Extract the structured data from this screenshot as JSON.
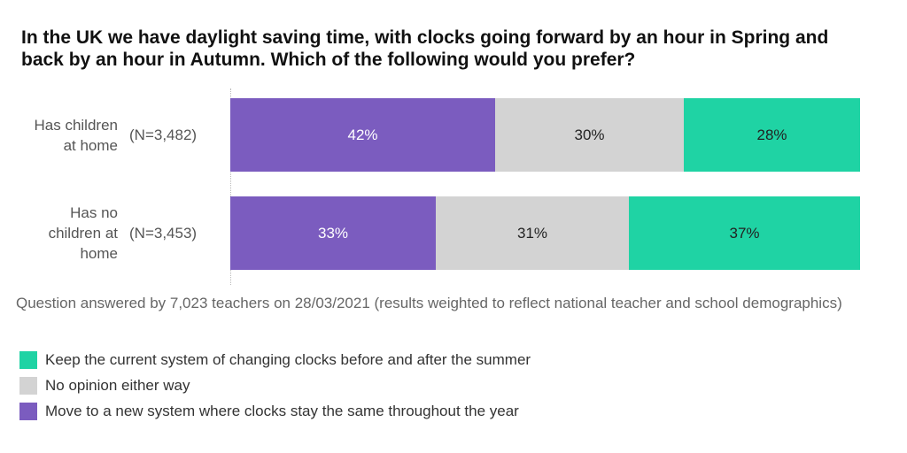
{
  "chart_data": {
    "type": "bar",
    "orientation": "horizontal",
    "stacked": true,
    "title": "In the UK we have daylight saving time, with clocks going forward by an hour in Spring and back by an hour in Autumn.  Which of the following would you prefer?",
    "categories": [
      {
        "label": "Has children at home",
        "label_lines": [
          "Has children",
          "at home"
        ],
        "n": "(N=3,482)"
      },
      {
        "label": "Has no children at home",
        "label_lines": [
          "Has no",
          "children at",
          "home"
        ],
        "n": "(N=3,453)"
      }
    ],
    "series": [
      {
        "name": "Move to a new system where clocks stay the same throughout the year",
        "color": "#7b5cbf",
        "text_color": "#ffffff",
        "values": [
          42,
          33
        ]
      },
      {
        "name": "No opinion either way",
        "color": "#d3d3d3",
        "text_color": "#222222",
        "values": [
          30,
          31
        ]
      },
      {
        "name": "Keep the current system of changing clocks before and after the summer",
        "color": "#1fd3a4",
        "text_color": "#222222",
        "values": [
          28,
          37
        ]
      }
    ],
    "value_suffix": "%",
    "legend_order": [
      2,
      1,
      0
    ],
    "legend_position": "bottom-left",
    "grid": false,
    "footnote": "Question answered by 7,023 teachers on 28/03/2021 (results weighted to reflect national teacher and school demographics)"
  }
}
